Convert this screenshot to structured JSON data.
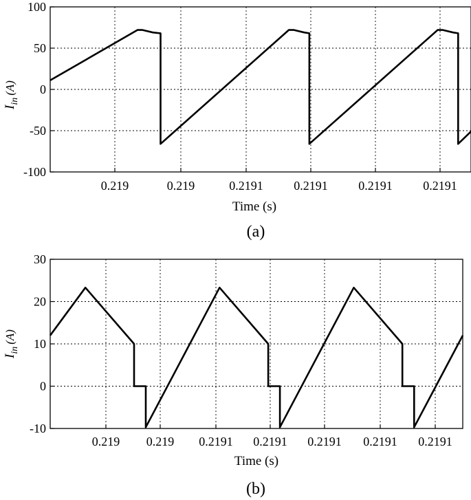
{
  "chart_data": [
    {
      "type": "line",
      "caption": "(a)",
      "xlabel": "Time (s)",
      "ylabel": {
        "symbol": "I",
        "subscript": "in",
        "unit": "(A)"
      },
      "ylim": [
        -100,
        100
      ],
      "yticks": [
        100,
        50,
        0,
        -50,
        -100
      ],
      "xticks": [
        "0.219",
        "0.219",
        "0.2191",
        "0.2191",
        "0.2191",
        "0.2191"
      ],
      "grid": true,
      "series": [
        {
          "points": [
            [
              0,
              11
            ],
            [
              1.7,
              72
            ],
            [
              1.8,
              72
            ],
            [
              2.0,
              69
            ],
            [
              2.15,
              68
            ],
            [
              2.15,
              -66
            ],
            [
              4.65,
              72
            ],
            [
              4.75,
              72
            ],
            [
              4.95,
              69
            ],
            [
              5.05,
              68
            ],
            [
              5.05,
              -66
            ],
            [
              7.55,
              72
            ],
            [
              7.65,
              72
            ],
            [
              7.85,
              69
            ],
            [
              7.95,
              68
            ],
            [
              7.95,
              -66
            ],
            [
              8.2,
              -51
            ]
          ]
        }
      ]
    },
    {
      "type": "line",
      "caption": "(b)",
      "xlabel": "Time (s)",
      "ylabel": {
        "symbol": "I",
        "subscript": "in",
        "unit": "(A)"
      },
      "ylim": [
        -10,
        30
      ],
      "yticks": [
        30,
        20,
        10,
        0,
        -10
      ],
      "xticks": [
        "0.219",
        "0.219",
        "0.2191",
        "0.2191",
        "0.2191",
        "0.2191",
        "0.2191"
      ],
      "grid": true,
      "series": [
        {
          "points": [
            [
              0,
              12
            ],
            [
              1.05,
              23.3
            ],
            [
              2.5,
              10
            ],
            [
              2.5,
              0
            ],
            [
              2.85,
              0
            ],
            [
              2.85,
              -9.7
            ],
            [
              5.05,
              23.3
            ],
            [
              6.5,
              10
            ],
            [
              6.5,
              0
            ],
            [
              6.85,
              0
            ],
            [
              6.85,
              -9.7
            ],
            [
              9.05,
              23.3
            ],
            [
              10.5,
              10
            ],
            [
              10.5,
              0
            ],
            [
              10.85,
              0
            ],
            [
              10.85,
              -9.7
            ],
            [
              12.3,
              12
            ]
          ]
        }
      ]
    }
  ]
}
